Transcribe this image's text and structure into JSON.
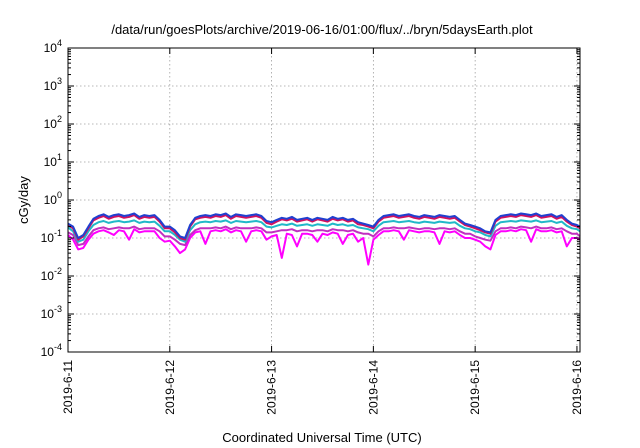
{
  "chart_data": {
    "type": "line",
    "title": "/data/run/goesPlots/archive/2019-06-16/01:00/flux/../bryn/5daysEarth.plot",
    "xlabel": "Coordinated Universal Time (UTC)",
    "ylabel": "cGy/day",
    "xlim": [
      0,
      5.03
    ],
    "ylim": [
      0.0001,
      10000
    ],
    "y_scale": "log",
    "grid": true,
    "legend": "none",
    "x_ticks": [
      {
        "value": 0,
        "label": "2019-6-11"
      },
      {
        "value": 1,
        "label": "2019-6-12"
      },
      {
        "value": 2,
        "label": "2019-6-13"
      },
      {
        "value": 3,
        "label": "2019-6-14"
      },
      {
        "value": 4,
        "label": "2019-6-15"
      },
      {
        "value": 5,
        "label": "2019-6-16"
      }
    ],
    "y_ticks": [
      {
        "value": 0.0001,
        "base": "10",
        "exp": "-4"
      },
      {
        "value": 0.001,
        "base": "10",
        "exp": "-3"
      },
      {
        "value": 0.01,
        "base": "10",
        "exp": "-2"
      },
      {
        "value": 0.1,
        "base": "10",
        "exp": "-1"
      },
      {
        "value": 1,
        "base": "10",
        "exp": "0"
      },
      {
        "value": 10,
        "base": "10",
        "exp": "1"
      },
      {
        "value": 100,
        "base": "10",
        "exp": "2"
      },
      {
        "value": 1000,
        "base": "10",
        "exp": "3"
      },
      {
        "value": 10000,
        "base": "10",
        "exp": "4"
      }
    ],
    "x": [
      0,
      0.05,
      0.1,
      0.15,
      0.2,
      0.25,
      0.3,
      0.35,
      0.4,
      0.45,
      0.5,
      0.55,
      0.6,
      0.65,
      0.7,
      0.75,
      0.8,
      0.85,
      0.9,
      0.95,
      1.0,
      1.05,
      1.1,
      1.15,
      1.2,
      1.25,
      1.3,
      1.35,
      1.4,
      1.45,
      1.5,
      1.55,
      1.6,
      1.65,
      1.7,
      1.75,
      1.8,
      1.85,
      1.9,
      1.95,
      2.0,
      2.05,
      2.1,
      2.15,
      2.2,
      2.25,
      2.3,
      2.35,
      2.4,
      2.45,
      2.5,
      2.55,
      2.6,
      2.65,
      2.7,
      2.75,
      2.8,
      2.85,
      2.9,
      2.95,
      3.0,
      3.05,
      3.1,
      3.15,
      3.2,
      3.25,
      3.3,
      3.35,
      3.4,
      3.45,
      3.5,
      3.55,
      3.6,
      3.65,
      3.7,
      3.75,
      3.8,
      3.85,
      3.9,
      3.95,
      4.0,
      4.05,
      4.1,
      4.15,
      4.2,
      4.25,
      4.3,
      4.35,
      4.4,
      4.45,
      4.5,
      4.55,
      4.6,
      4.65,
      4.7,
      4.75,
      4.8,
      4.85,
      4.9,
      4.95,
      5.0,
      5.03
    ],
    "series": [
      {
        "color": "#2040d0",
        "values": [
          0.24,
          0.2,
          0.1,
          0.12,
          0.2,
          0.32,
          0.38,
          0.42,
          0.36,
          0.4,
          0.42,
          0.38,
          0.4,
          0.44,
          0.36,
          0.4,
          0.38,
          0.4,
          0.3,
          0.2,
          0.2,
          0.16,
          0.11,
          0.1,
          0.22,
          0.34,
          0.38,
          0.4,
          0.38,
          0.42,
          0.4,
          0.44,
          0.36,
          0.42,
          0.4,
          0.38,
          0.4,
          0.42,
          0.38,
          0.28,
          0.26,
          0.3,
          0.34,
          0.32,
          0.36,
          0.3,
          0.32,
          0.34,
          0.3,
          0.34,
          0.32,
          0.3,
          0.36,
          0.32,
          0.34,
          0.3,
          0.32,
          0.26,
          0.24,
          0.22,
          0.2,
          0.3,
          0.38,
          0.4,
          0.42,
          0.38,
          0.4,
          0.42,
          0.38,
          0.36,
          0.4,
          0.38,
          0.36,
          0.4,
          0.38,
          0.36,
          0.38,
          0.3,
          0.24,
          0.22,
          0.2,
          0.18,
          0.15,
          0.14,
          0.3,
          0.38,
          0.4,
          0.42,
          0.4,
          0.44,
          0.42,
          0.4,
          0.44,
          0.38,
          0.4,
          0.42,
          0.36,
          0.4,
          0.3,
          0.24,
          0.22,
          0.2
        ]
      },
      {
        "color": "#d01060",
        "values": [
          0.22,
          0.18,
          0.09,
          0.11,
          0.18,
          0.29,
          0.34,
          0.38,
          0.32,
          0.36,
          0.38,
          0.34,
          0.36,
          0.4,
          0.32,
          0.36,
          0.34,
          0.36,
          0.27,
          0.18,
          0.18,
          0.14,
          0.1,
          0.09,
          0.2,
          0.31,
          0.34,
          0.36,
          0.34,
          0.38,
          0.36,
          0.4,
          0.32,
          0.38,
          0.36,
          0.34,
          0.36,
          0.38,
          0.34,
          0.25,
          0.23,
          0.27,
          0.31,
          0.29,
          0.32,
          0.27,
          0.29,
          0.31,
          0.27,
          0.31,
          0.29,
          0.27,
          0.32,
          0.29,
          0.31,
          0.27,
          0.29,
          0.23,
          0.22,
          0.2,
          0.18,
          0.27,
          0.34,
          0.36,
          0.38,
          0.34,
          0.36,
          0.38,
          0.34,
          0.32,
          0.36,
          0.34,
          0.32,
          0.36,
          0.34,
          0.32,
          0.34,
          0.27,
          0.22,
          0.2,
          0.18,
          0.16,
          0.14,
          0.13,
          0.27,
          0.34,
          0.36,
          0.38,
          0.36,
          0.4,
          0.38,
          0.36,
          0.4,
          0.34,
          0.36,
          0.38,
          0.32,
          0.36,
          0.27,
          0.22,
          0.2,
          0.18
        ]
      },
      {
        "color": "#20b8c8",
        "values": [
          0.19,
          0.15,
          0.08,
          0.09,
          0.15,
          0.22,
          0.26,
          0.28,
          0.25,
          0.27,
          0.28,
          0.26,
          0.27,
          0.29,
          0.25,
          0.27,
          0.26,
          0.27,
          0.21,
          0.15,
          0.15,
          0.12,
          0.09,
          0.08,
          0.16,
          0.23,
          0.26,
          0.27,
          0.26,
          0.28,
          0.27,
          0.29,
          0.25,
          0.28,
          0.27,
          0.26,
          0.27,
          0.28,
          0.26,
          0.2,
          0.19,
          0.21,
          0.23,
          0.22,
          0.24,
          0.21,
          0.22,
          0.23,
          0.21,
          0.23,
          0.22,
          0.21,
          0.24,
          0.22,
          0.23,
          0.21,
          0.22,
          0.19,
          0.18,
          0.17,
          0.15,
          0.21,
          0.26,
          0.27,
          0.28,
          0.26,
          0.27,
          0.28,
          0.26,
          0.25,
          0.27,
          0.26,
          0.25,
          0.27,
          0.26,
          0.25,
          0.26,
          0.21,
          0.18,
          0.17,
          0.15,
          0.14,
          0.12,
          0.11,
          0.21,
          0.26,
          0.27,
          0.28,
          0.27,
          0.29,
          0.28,
          0.27,
          0.29,
          0.26,
          0.27,
          0.28,
          0.25,
          0.27,
          0.21,
          0.18,
          0.17,
          0.15
        ]
      },
      {
        "color": "#c030c0",
        "values": [
          0.14,
          0.12,
          0.065,
          0.07,
          0.11,
          0.16,
          0.18,
          0.19,
          0.17,
          0.18,
          0.19,
          0.18,
          0.18,
          0.2,
          0.17,
          0.18,
          0.18,
          0.18,
          0.15,
          0.11,
          0.11,
          0.09,
          0.07,
          0.065,
          0.12,
          0.16,
          0.18,
          0.18,
          0.18,
          0.19,
          0.18,
          0.2,
          0.17,
          0.19,
          0.18,
          0.18,
          0.18,
          0.19,
          0.18,
          0.14,
          0.14,
          0.15,
          0.16,
          0.16,
          0.17,
          0.15,
          0.16,
          0.16,
          0.15,
          0.16,
          0.16,
          0.15,
          0.17,
          0.16,
          0.16,
          0.15,
          0.16,
          0.14,
          0.13,
          0.13,
          0.11,
          0.15,
          0.18,
          0.18,
          0.19,
          0.18,
          0.18,
          0.19,
          0.18,
          0.17,
          0.18,
          0.18,
          0.17,
          0.18,
          0.18,
          0.17,
          0.18,
          0.15,
          0.13,
          0.13,
          0.11,
          0.1,
          0.09,
          0.085,
          0.15,
          0.18,
          0.18,
          0.19,
          0.18,
          0.2,
          0.19,
          0.18,
          0.2,
          0.18,
          0.18,
          0.19,
          0.17,
          0.18,
          0.15,
          0.13,
          0.13,
          0.11
        ]
      },
      {
        "color": "#ff00ff",
        "values": [
          0.12,
          0.09,
          0.05,
          0.055,
          0.09,
          0.13,
          0.15,
          0.16,
          0.14,
          0.12,
          0.16,
          0.15,
          0.09,
          0.17,
          0.14,
          0.15,
          0.15,
          0.15,
          0.1,
          0.08,
          0.085,
          0.06,
          0.04,
          0.05,
          0.1,
          0.14,
          0.15,
          0.07,
          0.15,
          0.16,
          0.15,
          0.17,
          0.14,
          0.16,
          0.15,
          0.08,
          0.15,
          0.16,
          0.15,
          0.09,
          0.11,
          0.12,
          0.03,
          0.13,
          0.12,
          0.06,
          0.13,
          0.13,
          0.12,
          0.08,
          0.13,
          0.12,
          0.14,
          0.13,
          0.07,
          0.12,
          0.13,
          0.08,
          0.1,
          0.02,
          0.09,
          0.12,
          0.15,
          0.15,
          0.16,
          0.15,
          0.09,
          0.16,
          0.15,
          0.14,
          0.15,
          0.15,
          0.14,
          0.07,
          0.15,
          0.14,
          0.15,
          0.12,
          0.1,
          0.1,
          0.09,
          0.08,
          0.06,
          0.05,
          0.12,
          0.15,
          0.15,
          0.16,
          0.15,
          0.17,
          0.16,
          0.08,
          0.17,
          0.15,
          0.15,
          0.16,
          0.14,
          0.15,
          0.06,
          0.1,
          0.1,
          0.09
        ]
      }
    ]
  }
}
